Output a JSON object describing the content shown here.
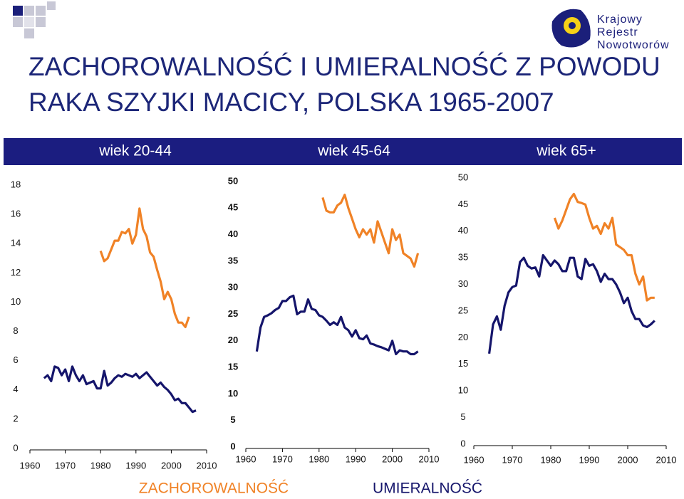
{
  "title_lines": [
    "ZACHOROWALNOŚĆ I UMIERALNOŚĆ Z POWODU",
    "RAKA SZYJKI MACICY, POLSKA 1965-2007"
  ],
  "logo": [
    "Krajowy",
    "Rejestr",
    "Nowotworów"
  ],
  "legend": [
    {
      "name": "ZACHOROWALNOŚĆ",
      "color": "#f08226"
    },
    {
      "name": "UMIERALNOŚĆ",
      "color": "#15156b"
    }
  ],
  "chart_data": [
    {
      "type": "line",
      "title": "wiek 20-44",
      "x": [
        1963,
        1964,
        1965,
        1966,
        1967,
        1968,
        1969,
        1970,
        1971,
        1972,
        1973,
        1974,
        1975,
        1976,
        1977,
        1978,
        1979,
        1980,
        1981,
        1982,
        1983,
        1984,
        1985,
        1986,
        1987,
        1988,
        1989,
        1990,
        1991,
        1992,
        1993,
        1994,
        1995,
        1996,
        1997,
        1998,
        1999,
        2000,
        2001,
        2002,
        2003,
        2004,
        2005,
        2006,
        2007
      ],
      "series": [
        {
          "color": "#f08226",
          "values": [
            null,
            null,
            null,
            null,
            null,
            null,
            null,
            null,
            null,
            null,
            null,
            null,
            null,
            null,
            null,
            null,
            null,
            13.5,
            12.8,
            13.0,
            13.6,
            14.2,
            14.2,
            14.8,
            14.7,
            15.0,
            14.0,
            14.6,
            16.4,
            15.0,
            14.5,
            13.4,
            13.1,
            12.2,
            11.4,
            10.2,
            10.7,
            10.2,
            9.2,
            8.6,
            8.6,
            8.3,
            9.0,
            null,
            null
          ]
        },
        {
          "color": "#15156b",
          "values": [
            null,
            4.8,
            5.0,
            4.6,
            5.6,
            5.5,
            5.0,
            5.4,
            4.6,
            5.6,
            5.0,
            4.6,
            5.0,
            4.4,
            4.5,
            4.6,
            4.1,
            4.1,
            5.3,
            4.3,
            4.5,
            4.8,
            5.0,
            4.9,
            5.1,
            5.0,
            4.9,
            5.1,
            4.8,
            5.0,
            5.2,
            4.9,
            4.6,
            4.3,
            4.5,
            4.2,
            4.0,
            3.7,
            3.3,
            3.4,
            3.1,
            3.1,
            2.8,
            2.5,
            2.6
          ]
        }
      ],
      "xlim": [
        1960,
        2010
      ],
      "xticks": [
        1960,
        1970,
        1980,
        1990,
        2000,
        2010
      ],
      "ylim": [
        0,
        18
      ],
      "yticks": [
        0,
        2,
        4,
        6,
        8,
        10,
        12,
        14,
        16,
        18
      ]
    },
    {
      "type": "line",
      "title": "wiek 45-64",
      "x": [
        1963,
        1964,
        1965,
        1966,
        1967,
        1968,
        1969,
        1970,
        1971,
        1972,
        1973,
        1974,
        1975,
        1976,
        1977,
        1978,
        1979,
        1980,
        1981,
        1982,
        1983,
        1984,
        1985,
        1986,
        1987,
        1988,
        1989,
        1990,
        1991,
        1992,
        1993,
        1994,
        1995,
        1996,
        1997,
        1998,
        1999,
        2000,
        2001,
        2002,
        2003,
        2004,
        2005,
        2006,
        2007
      ],
      "series": [
        {
          "color": "#f08226",
          "values": [
            null,
            null,
            null,
            null,
            null,
            null,
            null,
            null,
            null,
            null,
            null,
            null,
            null,
            null,
            null,
            null,
            null,
            null,
            47,
            44.5,
            44.2,
            44.2,
            45.5,
            46,
            47.5,
            45,
            43,
            41,
            39.5,
            41,
            40,
            41,
            38.5,
            42.5,
            40.5,
            38.5,
            36.5,
            41,
            39,
            40,
            36.5,
            36,
            35.5,
            34,
            36.5
          ]
        },
        {
          "color": "#15156b",
          "values": [
            18,
            22.5,
            24.5,
            24.8,
            25.2,
            25.8,
            26.2,
            27.5,
            27.5,
            28.2,
            28.5,
            25,
            25.5,
            25.5,
            27.8,
            26,
            25.8,
            24.8,
            24.5,
            23.8,
            23,
            23.5,
            23,
            24.5,
            22.5,
            22,
            20.8,
            22,
            20.5,
            20.3,
            21,
            19.5,
            19.3,
            19,
            18.8,
            18.5,
            18.2,
            20,
            17.5,
            18.2,
            18,
            18,
            17.5,
            17.5,
            18
          ]
        }
      ],
      "xlim": [
        1960,
        2010
      ],
      "xticks": [
        1960,
        1970,
        1980,
        1990,
        2000,
        2010
      ],
      "ylim": [
        0,
        50
      ],
      "yticks": [
        0,
        5,
        10,
        15,
        20,
        25,
        30,
        35,
        40,
        45,
        50
      ]
    },
    {
      "type": "line",
      "title": "wiek 65+",
      "x": [
        1963,
        1964,
        1965,
        1966,
        1967,
        1968,
        1969,
        1970,
        1971,
        1972,
        1973,
        1974,
        1975,
        1976,
        1977,
        1978,
        1979,
        1980,
        1981,
        1982,
        1983,
        1984,
        1985,
        1986,
        1987,
        1988,
        1989,
        1990,
        1991,
        1992,
        1993,
        1994,
        1995,
        1996,
        1997,
        1998,
        1999,
        2000,
        2001,
        2002,
        2003,
        2004,
        2005,
        2006,
        2007
      ],
      "series": [
        {
          "color": "#f08226",
          "values": [
            null,
            null,
            null,
            null,
            null,
            null,
            null,
            null,
            null,
            null,
            null,
            null,
            null,
            null,
            null,
            null,
            null,
            null,
            42.5,
            40.5,
            42,
            44,
            46,
            47,
            45.5,
            45.3,
            45,
            42.5,
            40.5,
            41,
            39.5,
            41.5,
            40.5,
            42.5,
            37.5,
            37,
            36.5,
            35.5,
            35.5,
            32,
            30,
            31.5,
            27,
            27.5,
            27.5
          ]
        },
        {
          "color": "#15156b",
          "values": [
            null,
            17,
            22.5,
            24,
            21.5,
            26,
            28.5,
            29.5,
            29.8,
            34.2,
            35,
            33.5,
            33,
            33.2,
            31.5,
            35.5,
            34.5,
            33.5,
            34.5,
            33.8,
            32.5,
            32.5,
            35,
            35,
            31.5,
            31,
            34.8,
            33.5,
            33.8,
            32.5,
            30.5,
            32,
            31,
            31,
            30,
            28.5,
            26.5,
            27.5,
            25,
            23.5,
            23.5,
            22.3,
            22,
            22.5,
            23.2
          ]
        }
      ],
      "xlim": [
        1960,
        2010
      ],
      "xticks": [
        1960,
        1970,
        1980,
        1990,
        2000,
        2010
      ],
      "ylim": [
        0,
        50
      ],
      "yticks": [
        0,
        5,
        10,
        15,
        20,
        25,
        30,
        35,
        40,
        45,
        50
      ]
    }
  ]
}
